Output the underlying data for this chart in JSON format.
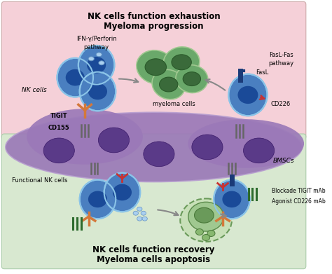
{
  "title_top1": "NK cells function exhaustion",
  "title_top2": "Myeloma progression",
  "title_bot1": "NK cells function recovery",
  "title_bot2": "Myeloma cells apoptosis",
  "bg_top_color": "#f5d0d8",
  "bg_bot_color": "#d8e8d0",
  "bg_purple_color": "#9b79b8",
  "bg_purple_light": "#b89fd0",
  "cell_nk_fill": "#4a7fc0",
  "cell_nk_edge": "#8bc4e8",
  "cell_myeloma_fill": "#6aa86a",
  "cell_myeloma_edge": "#a0c890",
  "orange_color": "#d4783a",
  "red_color": "#c83232",
  "dark_blue_color": "#1a3a78",
  "green_dark_color": "#2d6b2d",
  "gray_color": "#888888",
  "label_fontsize": 6.5,
  "title_fontsize": 8.5
}
